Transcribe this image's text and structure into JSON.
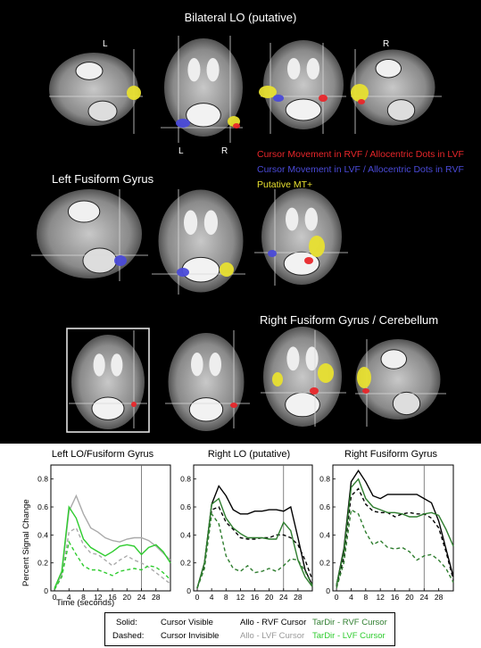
{
  "brain": {
    "section_titles": {
      "bilateral_lo": "Bilateral LO (putative)",
      "left_fusiform": "Left Fusiform Gyrus",
      "right_fusiform": "Right Fusiform Gyrus / Cerebellum"
    },
    "hemisphere_labels": {
      "l1": "L",
      "r1": "R",
      "l2": "L",
      "r2": "R"
    },
    "legend": [
      {
        "text": "Cursor Movement in RVF / Allocentric Dots in LVF",
        "color": "#e8262a"
      },
      {
        "text": "Cursor Movement in LVF / Allocentric Dots in RVF",
        "color": "#4a4ad8"
      },
      {
        "text": "Putative MT+",
        "color": "#e8e030"
      }
    ]
  },
  "charts_common": {
    "ylabel": "Percent Signal Change",
    "xlabel": "Time (seconds)",
    "x_ticks": [
      "0",
      "4",
      "8",
      "12",
      "16",
      "20",
      "24",
      "28"
    ],
    "y_ticks": [
      "0",
      "0.2",
      "0.4",
      "0.6",
      "0.8"
    ]
  },
  "key": {
    "solid_label": "Solid:",
    "solid_text": "Cursor Visible",
    "dashed_label": "Dashed:",
    "dashed_text": "Cursor Invisible",
    "allo_rvf": "Allo - RVF Cursor",
    "allo_lvf": "Allo - LVF Cursor",
    "tardir_rvf": "TarDir - RVF Cursor",
    "tardir_lvf": "TarDir - LVF Cursor",
    "colors": {
      "allo_rvf": "#000000",
      "allo_lvf": "#aaaaaa",
      "tardir_rvf": "#2e7d2e",
      "tardir_lvf": "#2ecc2e"
    }
  },
  "chart_data": [
    {
      "type": "line",
      "title": "Left LO/Fusiform Gyrus",
      "xlabel": "Time (seconds)",
      "ylabel": "Percent Signal Change",
      "x": [
        0,
        2,
        4,
        6,
        8,
        10,
        12,
        14,
        16,
        18,
        20,
        22,
        24,
        26,
        28,
        30,
        32
      ],
      "xlim": [
        -1,
        32
      ],
      "ylim": [
        0,
        0.9
      ],
      "marker_x": 24,
      "series": [
        {
          "name": "Allo - LVF Cursor",
          "style": "solid",
          "color": "#aaaaaa",
          "values": [
            0.01,
            0.12,
            0.57,
            0.68,
            0.55,
            0.45,
            0.42,
            0.38,
            0.36,
            0.35,
            0.37,
            0.38,
            0.38,
            0.36,
            0.32,
            0.27,
            0.22
          ]
        },
        {
          "name": "Allo - LVF Cursor",
          "style": "dashed",
          "color": "#aaaaaa",
          "values": [
            0.01,
            0.1,
            0.42,
            0.45,
            0.33,
            0.27,
            0.26,
            0.22,
            0.18,
            0.22,
            0.25,
            0.22,
            0.2,
            0.17,
            0.13,
            0.09,
            0.05
          ]
        },
        {
          "name": "TarDir - LVF Cursor",
          "style": "solid",
          "color": "#2ecc2e",
          "values": [
            0.02,
            0.14,
            0.6,
            0.52,
            0.37,
            0.31,
            0.28,
            0.25,
            0.28,
            0.32,
            0.33,
            0.32,
            0.26,
            0.31,
            0.33,
            0.28,
            0.2
          ]
        },
        {
          "name": "TarDir - LVF Cursor",
          "style": "dashed",
          "color": "#2ecc2e",
          "values": [
            0.01,
            0.1,
            0.35,
            0.26,
            0.18,
            0.15,
            0.15,
            0.13,
            0.11,
            0.14,
            0.15,
            0.16,
            0.15,
            0.18,
            0.17,
            0.13,
            0.08
          ]
        }
      ]
    },
    {
      "type": "line",
      "title": "Right LO (putative)",
      "xlabel": "Time (seconds)",
      "ylabel": "Percent Signal Change",
      "x": [
        0,
        2,
        4,
        6,
        8,
        10,
        12,
        14,
        16,
        18,
        20,
        22,
        24,
        26,
        28,
        30,
        32
      ],
      "xlim": [
        -1,
        32
      ],
      "ylim": [
        0,
        0.9
      ],
      "marker_x": 24,
      "series": [
        {
          "name": "Allo - RVF Cursor",
          "style": "solid",
          "color": "#000000",
          "values": [
            0.02,
            0.2,
            0.62,
            0.75,
            0.68,
            0.58,
            0.55,
            0.55,
            0.57,
            0.57,
            0.58,
            0.58,
            0.57,
            0.6,
            0.38,
            0.15,
            0.04
          ]
        },
        {
          "name": "Allo - RVF Cursor",
          "style": "dashed",
          "color": "#000000",
          "values": [
            0.02,
            0.18,
            0.58,
            0.6,
            0.49,
            0.44,
            0.38,
            0.37,
            0.37,
            0.38,
            0.38,
            0.4,
            0.4,
            0.38,
            0.33,
            0.22,
            0.08
          ]
        },
        {
          "name": "TarDir - RVF Cursor",
          "style": "solid",
          "color": "#2e7d2e",
          "values": [
            0.02,
            0.2,
            0.62,
            0.66,
            0.52,
            0.45,
            0.41,
            0.38,
            0.38,
            0.38,
            0.37,
            0.37,
            0.49,
            0.43,
            0.22,
            0.1,
            0.03
          ]
        },
        {
          "name": "TarDir - RVF Cursor",
          "style": "dashed",
          "color": "#2e7d2e",
          "values": [
            0.02,
            0.16,
            0.55,
            0.48,
            0.25,
            0.16,
            0.14,
            0.18,
            0.13,
            0.14,
            0.16,
            0.14,
            0.18,
            0.23,
            0.22,
            0.14,
            0.04
          ]
        }
      ]
    },
    {
      "type": "line",
      "title": "Right Fusiform Gyrus",
      "xlabel": "Time (seconds)",
      "ylabel": "Percent Signal Change",
      "x": [
        0,
        2,
        4,
        6,
        8,
        10,
        12,
        14,
        16,
        18,
        20,
        22,
        24,
        26,
        28,
        30,
        32
      ],
      "xlim": [
        -1,
        32
      ],
      "ylim": [
        0,
        0.9
      ],
      "marker_x": 24,
      "series": [
        {
          "name": "Allo - RVF Cursor",
          "style": "solid",
          "color": "#000000",
          "values": [
            0.04,
            0.3,
            0.78,
            0.86,
            0.78,
            0.68,
            0.66,
            0.69,
            0.69,
            0.69,
            0.69,
            0.69,
            0.66,
            0.63,
            0.5,
            0.3,
            0.1
          ]
        },
        {
          "name": "Allo - RVF Cursor",
          "style": "dashed",
          "color": "#000000",
          "values": [
            0.03,
            0.24,
            0.68,
            0.73,
            0.62,
            0.57,
            0.56,
            0.56,
            0.53,
            0.55,
            0.56,
            0.55,
            0.55,
            0.52,
            0.45,
            0.28,
            0.08
          ]
        },
        {
          "name": "TarDir - RVF Cursor",
          "style": "solid",
          "color": "#2e7d2e",
          "values": [
            0.04,
            0.28,
            0.74,
            0.8,
            0.66,
            0.6,
            0.58,
            0.56,
            0.56,
            0.55,
            0.53,
            0.53,
            0.55,
            0.56,
            0.54,
            0.44,
            0.32
          ]
        },
        {
          "name": "TarDir - RVF Cursor",
          "style": "dashed",
          "color": "#2e7d2e",
          "values": [
            0.02,
            0.2,
            0.58,
            0.55,
            0.42,
            0.33,
            0.36,
            0.31,
            0.3,
            0.31,
            0.28,
            0.22,
            0.25,
            0.26,
            0.22,
            0.16,
            0.06
          ]
        }
      ]
    }
  ]
}
